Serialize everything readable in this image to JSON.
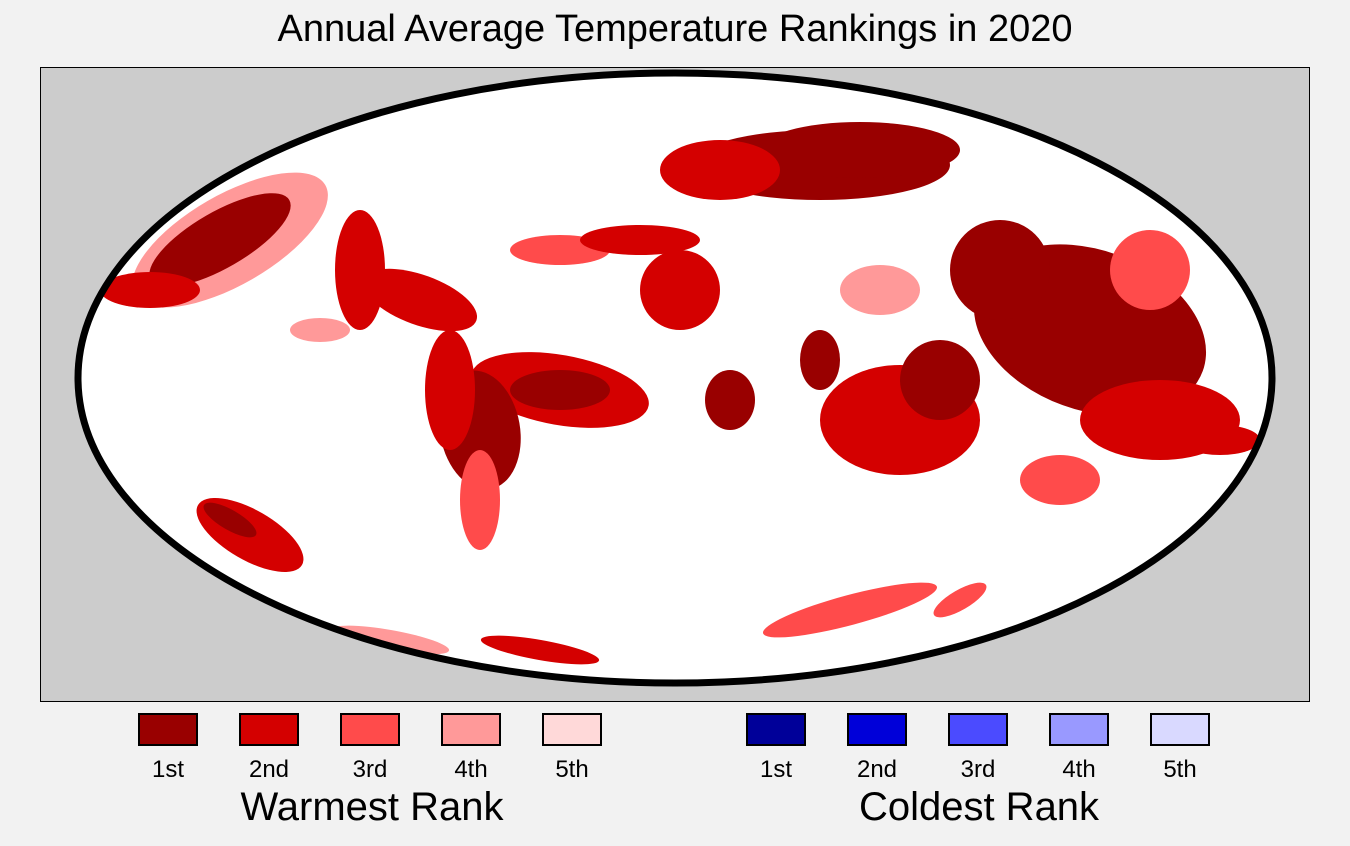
{
  "title": "Annual Average Temperature Rankings in 2020",
  "map": {
    "projection": "mollweide",
    "background_color": "#cccccc",
    "ocean_land_color": "#ffffff"
  },
  "legend": {
    "warmest": {
      "title": "Warmest Rank",
      "items": [
        {
          "label": "1st",
          "color": "#990000"
        },
        {
          "label": "2nd",
          "color": "#d40000"
        },
        {
          "label": "3rd",
          "color": "#ff4b4b"
        },
        {
          "label": "4th",
          "color": "#ff9999"
        },
        {
          "label": "5th",
          "color": "#ffd9d9"
        }
      ]
    },
    "coldest": {
      "title": "Coldest Rank",
      "items": [
        {
          "label": "1st",
          "color": "#000099"
        },
        {
          "label": "2nd",
          "color": "#0000d9"
        },
        {
          "label": "3rd",
          "color": "#4b4bff"
        },
        {
          "label": "4th",
          "color": "#9999ff"
        },
        {
          "label": "5th",
          "color": "#d9d9ff"
        }
      ]
    }
  }
}
